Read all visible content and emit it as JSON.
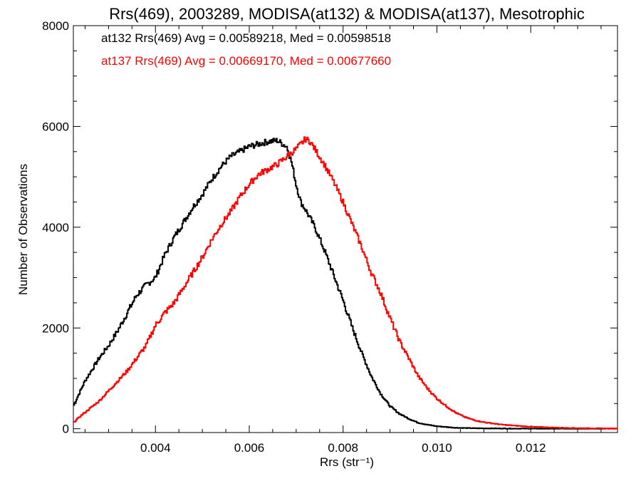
{
  "chart_data": {
    "type": "line",
    "title": "Rrs(469), 2003289, MODISA(at132) & MODISA(at137), Mesotrophic",
    "xlabel": "Rrs (str⁻¹)",
    "ylabel": "Number of Observations",
    "xlim": [
      0.00225,
      0.01385
    ],
    "ylim": [
      -75,
      8000
    ],
    "x_ticks": [
      0.004,
      0.006,
      0.008,
      0.01,
      0.012
    ],
    "x_tick_labels": [
      "0.004",
      "0.006",
      "0.008",
      "0.010",
      "0.012"
    ],
    "y_ticks": [
      0,
      2000,
      4000,
      6000,
      8000
    ],
    "y_tick_labels": [
      "0",
      "2000",
      "4000",
      "6000",
      "8000"
    ],
    "grid": false,
    "step": true,
    "legend_position": "top-left",
    "annotations": [
      {
        "text": "at132 Rrs(469) Avg = 0.00589218, Med = 0.00598518",
        "color": "#000000"
      },
      {
        "text": "at137 Rrs(469) Avg = 0.00669170, Med = 0.00677660",
        "color": "#ff0000"
      }
    ],
    "series": [
      {
        "color": "#000000",
        "x": [
          0.00225,
          0.0025,
          0.0028,
          0.003,
          0.0032,
          0.0034,
          0.0036,
          0.0038,
          0.004,
          0.0042,
          0.0044,
          0.0046,
          0.0048,
          0.005,
          0.0052,
          0.0054,
          0.0056,
          0.0058,
          0.006,
          0.0062,
          0.0064,
          0.0066,
          0.0068,
          0.0069,
          0.007,
          0.0071,
          0.0072,
          0.0074,
          0.0076,
          0.0078,
          0.008,
          0.0082,
          0.0084,
          0.0086,
          0.0088,
          0.009,
          0.0092,
          0.0094,
          0.0096,
          0.0098,
          0.01,
          0.0104,
          0.0108,
          0.0115,
          0.0125,
          0.0138
        ],
        "y": [
          450,
          950,
          1400,
          1650,
          1950,
          2300,
          2650,
          2850,
          3000,
          3450,
          3800,
          4100,
          4400,
          4650,
          4950,
          5200,
          5400,
          5500,
          5600,
          5650,
          5700,
          5720,
          5600,
          5300,
          4850,
          4500,
          4350,
          4000,
          3550,
          3050,
          2550,
          2000,
          1500,
          1050,
          700,
          450,
          300,
          200,
          120,
          80,
          50,
          20,
          10,
          5,
          0,
          0
        ]
      },
      {
        "color": "#ff0000",
        "x": [
          0.00225,
          0.0024,
          0.0026,
          0.0028,
          0.003,
          0.0032,
          0.0034,
          0.0036,
          0.0038,
          0.004,
          0.0042,
          0.0044,
          0.0046,
          0.0048,
          0.005,
          0.0052,
          0.0054,
          0.0056,
          0.0058,
          0.006,
          0.0062,
          0.0064,
          0.0066,
          0.0068,
          0.007,
          0.0071,
          0.0072,
          0.0073,
          0.0074,
          0.0076,
          0.0078,
          0.008,
          0.0082,
          0.0084,
          0.0086,
          0.0088,
          0.009,
          0.0092,
          0.0094,
          0.0096,
          0.0098,
          0.01,
          0.0102,
          0.0104,
          0.0106,
          0.0108,
          0.011,
          0.0114,
          0.012,
          0.0126,
          0.0132,
          0.0138
        ],
        "y": [
          120,
          250,
          400,
          550,
          750,
          950,
          1150,
          1400,
          1650,
          2050,
          2300,
          2500,
          2800,
          3100,
          3400,
          3750,
          4050,
          4300,
          4600,
          4850,
          5050,
          5150,
          5250,
          5400,
          5550,
          5650,
          5750,
          5700,
          5550,
          5250,
          4900,
          4500,
          4050,
          3600,
          3100,
          2700,
          2200,
          1750,
          1400,
          1050,
          800,
          600,
          450,
          320,
          230,
          170,
          130,
          80,
          40,
          20,
          10,
          5
        ]
      }
    ]
  }
}
